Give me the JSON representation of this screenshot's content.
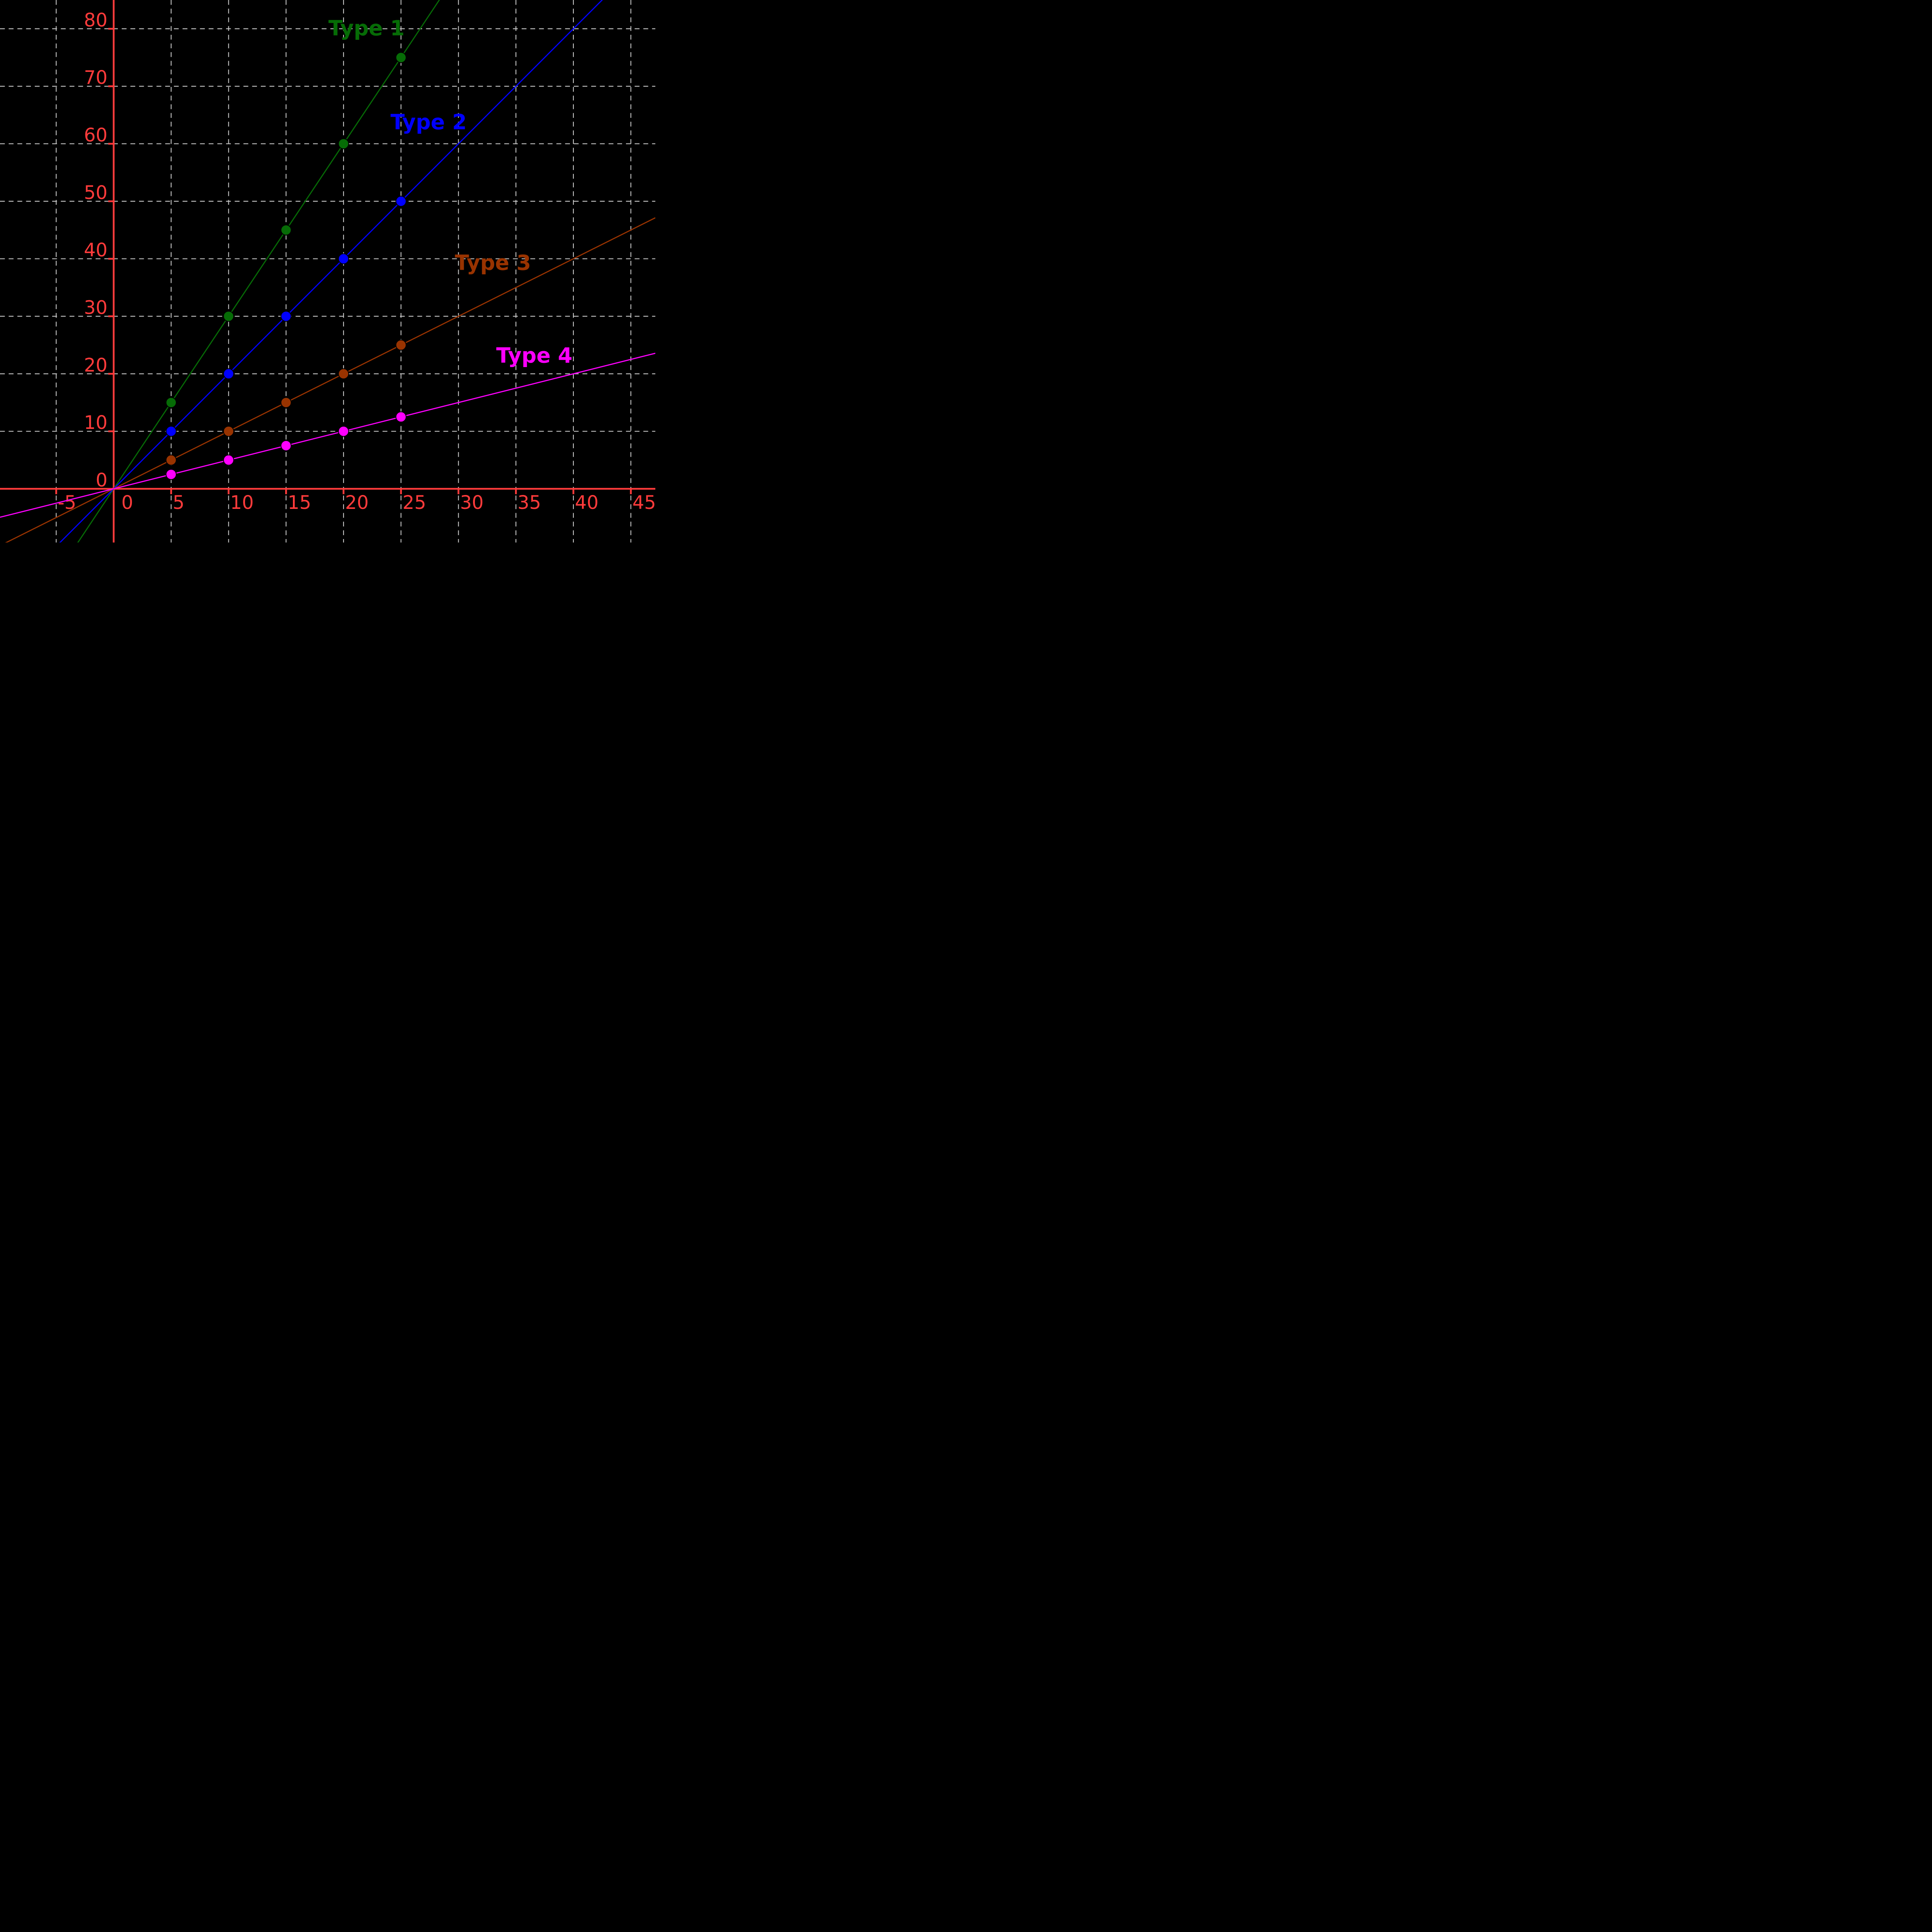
{
  "chart_data": {
    "type": "line",
    "title": "",
    "xlabel": "",
    "ylabel": "",
    "background_color": "#000000",
    "axis_color": "#ff3b3b",
    "grid_color": "#c7c7c7",
    "grid": true,
    "grid_style": "dashed",
    "legend": "inline-colored-labels",
    "x_ticks": [
      -5,
      0,
      5,
      10,
      15,
      20,
      25,
      30,
      35,
      40,
      45
    ],
    "y_ticks": [
      0,
      10,
      20,
      30,
      40,
      50,
      60,
      70,
      80
    ],
    "x_range": [
      -9.89,
      47.13
    ],
    "y_range": [
      -9.34,
      85.0
    ],
    "series": [
      {
        "name": "Type 1",
        "color": "#066c06",
        "slope": 3,
        "x": [
          5,
          10,
          15,
          20,
          25
        ],
        "y": [
          15,
          30,
          45,
          60,
          75
        ],
        "label_anchor": {
          "x": 22.0,
          "y": 80.1
        }
      },
      {
        "name": "Type 2",
        "color": "#0000ff",
        "slope": 2,
        "x": [
          5,
          10,
          15,
          20,
          25
        ],
        "y": [
          10,
          20,
          30,
          40,
          50
        ],
        "label_anchor": {
          "x": 27.4,
          "y": 63.8
        }
      },
      {
        "name": "Type 3",
        "color": "#993300",
        "slope": 1,
        "x": [
          5,
          10,
          15,
          20,
          25
        ],
        "y": [
          5,
          10,
          15,
          20,
          25
        ],
        "label_anchor": {
          "x": 33.0,
          "y": 39.3
        }
      },
      {
        "name": "Type 4",
        "color": "#ff00ff",
        "slope": 0.5,
        "x": [
          5,
          10,
          15,
          20,
          25
        ],
        "y": [
          2.5,
          5,
          7.5,
          10,
          12.5
        ],
        "label_anchor": {
          "x": 36.6,
          "y": 23.2
        }
      }
    ]
  }
}
